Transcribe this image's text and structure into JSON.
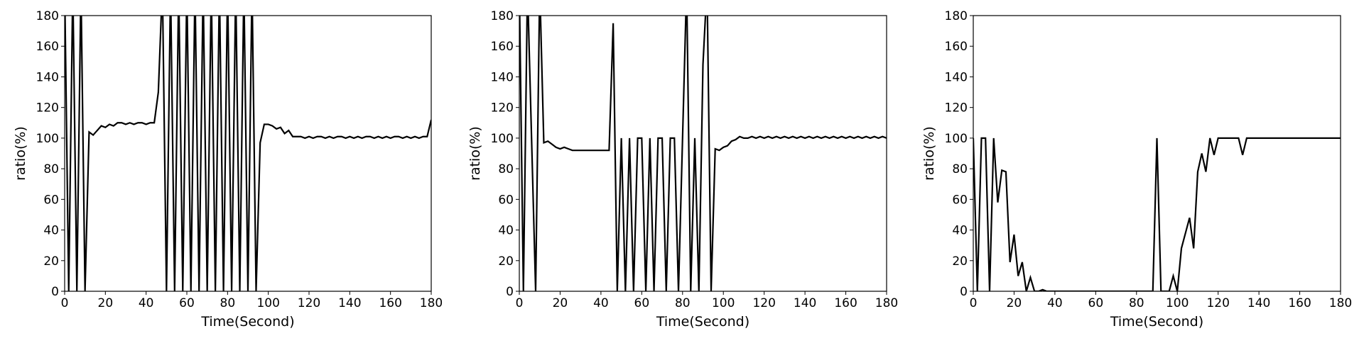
{
  "chart_data": [
    {
      "type": "line",
      "xlabel": "Time(Second)",
      "ylabel": "ratio(%)",
      "xlim": [
        0,
        180
      ],
      "ylim": [
        0,
        180
      ],
      "xticks": [
        0,
        20,
        40,
        60,
        80,
        100,
        120,
        140,
        160,
        180
      ],
      "yticks": [
        0,
        20,
        40,
        60,
        80,
        100,
        120,
        140,
        160,
        180
      ],
      "x": [
        0,
        2,
        4,
        6,
        8,
        10,
        12,
        14,
        16,
        18,
        20,
        22,
        24,
        26,
        28,
        30,
        32,
        34,
        36,
        38,
        40,
        42,
        44,
        46,
        48,
        50,
        52,
        54,
        56,
        58,
        60,
        62,
        64,
        66,
        68,
        70,
        72,
        74,
        76,
        78,
        80,
        82,
        84,
        86,
        88,
        90,
        92,
        94,
        96,
        98,
        100,
        102,
        104,
        106,
        108,
        110,
        112,
        114,
        116,
        118,
        120,
        122,
        124,
        126,
        128,
        130,
        132,
        134,
        136,
        138,
        140,
        142,
        144,
        146,
        148,
        150,
        152,
        154,
        156,
        158,
        160,
        162,
        164,
        166,
        168,
        170,
        172,
        174,
        176,
        178,
        180
      ],
      "series": [
        {
          "color": "#000000",
          "values": [
            200,
            0,
            200,
            0,
            200,
            0,
            104,
            102,
            105,
            108,
            107,
            109,
            108,
            110,
            110,
            109,
            110,
            109,
            110,
            110,
            109,
            110,
            110,
            130,
            200,
            0,
            200,
            0,
            200,
            0,
            200,
            0,
            200,
            0,
            200,
            0,
            200,
            0,
            200,
            0,
            200,
            0,
            200,
            0,
            200,
            0,
            200,
            0,
            97,
            109,
            109,
            108,
            106,
            107,
            103,
            105,
            101,
            101,
            101,
            100,
            101,
            100,
            101,
            101,
            100,
            101,
            100,
            101,
            101,
            100,
            101,
            100,
            101,
            100,
            101,
            101,
            100,
            101,
            100,
            101,
            100,
            101,
            101,
            100,
            101,
            100,
            101,
            100,
            101,
            101,
            112
          ]
        }
      ]
    },
    {
      "type": "line",
      "xlabel": "Time(Second)",
      "ylabel": "ratio(%)",
      "xlim": [
        0,
        180
      ],
      "ylim": [
        0,
        180
      ],
      "xticks": [
        0,
        20,
        40,
        60,
        80,
        100,
        120,
        140,
        160,
        180
      ],
      "yticks": [
        0,
        20,
        40,
        60,
        80,
        100,
        120,
        140,
        160,
        180
      ],
      "x": [
        0,
        2,
        4,
        6,
        8,
        10,
        12,
        14,
        16,
        18,
        20,
        22,
        24,
        26,
        28,
        30,
        32,
        34,
        36,
        38,
        40,
        42,
        44,
        46,
        48,
        50,
        52,
        54,
        56,
        58,
        60,
        62,
        64,
        66,
        68,
        70,
        72,
        74,
        76,
        78,
        80,
        82,
        84,
        86,
        88,
        90,
        92,
        94,
        96,
        98,
        100,
        102,
        104,
        106,
        108,
        110,
        112,
        114,
        116,
        118,
        120,
        122,
        124,
        126,
        128,
        130,
        132,
        134,
        136,
        138,
        140,
        142,
        144,
        146,
        148,
        150,
        152,
        154,
        156,
        158,
        160,
        162,
        164,
        166,
        168,
        170,
        172,
        174,
        176,
        178,
        180
      ],
      "series": [
        {
          "color": "#000000",
          "values": [
            200,
            0,
            200,
            100,
            0,
            200,
            97,
            98,
            96,
            94,
            93,
            94,
            93,
            92,
            92,
            92,
            92,
            92,
            92,
            92,
            92,
            92,
            92,
            175,
            0,
            100,
            0,
            100,
            0,
            100,
            100,
            0,
            100,
            0,
            100,
            100,
            0,
            100,
            100,
            0,
            100,
            200,
            0,
            100,
            0,
            148,
            200,
            0,
            93,
            92,
            94,
            95,
            98,
            99,
            101,
            100,
            100,
            101,
            100,
            101,
            100,
            101,
            100,
            101,
            100,
            101,
            100,
            101,
            100,
            101,
            100,
            101,
            100,
            101,
            100,
            101,
            100,
            101,
            100,
            101,
            100,
            101,
            100,
            101,
            100,
            101,
            100,
            101,
            100,
            101,
            100
          ]
        }
      ]
    },
    {
      "type": "line",
      "xlabel": "Time(Second)",
      "ylabel": "ratio(%)",
      "xlim": [
        0,
        180
      ],
      "ylim": [
        0,
        180
      ],
      "xticks": [
        0,
        20,
        40,
        60,
        80,
        100,
        120,
        140,
        160,
        180
      ],
      "yticks": [
        0,
        20,
        40,
        60,
        80,
        100,
        120,
        140,
        160,
        180
      ],
      "x": [
        0,
        2,
        4,
        6,
        8,
        10,
        12,
        14,
        16,
        18,
        20,
        22,
        24,
        26,
        28,
        30,
        32,
        34,
        36,
        38,
        40,
        42,
        44,
        46,
        48,
        50,
        52,
        54,
        56,
        58,
        60,
        62,
        64,
        66,
        68,
        70,
        72,
        74,
        76,
        78,
        80,
        82,
        84,
        86,
        88,
        90,
        92,
        94,
        96,
        98,
        100,
        102,
        104,
        106,
        108,
        110,
        112,
        114,
        116,
        118,
        120,
        122,
        124,
        126,
        128,
        130,
        132,
        134,
        136,
        138,
        140,
        142,
        144,
        146,
        148,
        150,
        152,
        154,
        156,
        158,
        160,
        162,
        164,
        166,
        168,
        170,
        172,
        174,
        176,
        178,
        180
      ],
      "series": [
        {
          "color": "#000000",
          "values": [
            100,
            0,
            100,
            100,
            0,
            100,
            58,
            79,
            78,
            19,
            37,
            10,
            19,
            0,
            9,
            0,
            0,
            1,
            0,
            0,
            0,
            0,
            0,
            0,
            0,
            0,
            0,
            0,
            0,
            0,
            0,
            0,
            0,
            0,
            0,
            0,
            0,
            0,
            0,
            0,
            0,
            0,
            0,
            0,
            0,
            100,
            0,
            0,
            0,
            10,
            0,
            28,
            38,
            48,
            28,
            78,
            90,
            78,
            100,
            89,
            100,
            100,
            100,
            100,
            100,
            100,
            89,
            100,
            100,
            100,
            100,
            100,
            100,
            100,
            100,
            100,
            100,
            100,
            100,
            100,
            100,
            100,
            100,
            100,
            100,
            100,
            100,
            100,
            100,
            100,
            100
          ]
        }
      ]
    }
  ]
}
